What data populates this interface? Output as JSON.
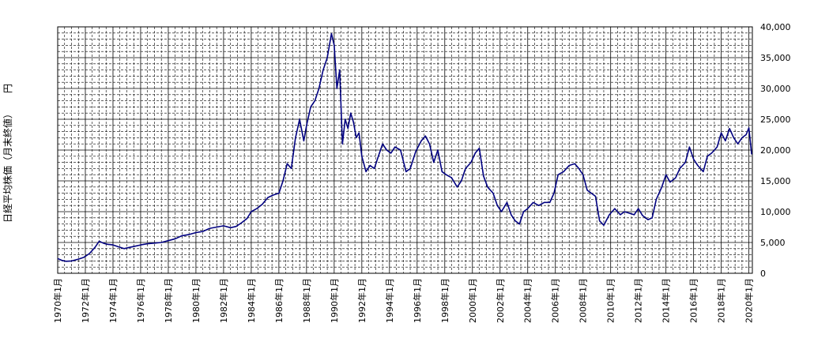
{
  "chart_data": {
    "type": "line",
    "ylabel": "日経平均株価（月末終値）",
    "unit_label": "円",
    "ylim": [
      0,
      40000
    ],
    "y_ticks": [
      {
        "value": 0,
        "label": "0"
      },
      {
        "value": 5000,
        "label": "5,000"
      },
      {
        "value": 10000,
        "label": "10,000"
      },
      {
        "value": 15000,
        "label": "15,000"
      },
      {
        "value": 20000,
        "label": "20,000"
      },
      {
        "value": 25000,
        "label": "25,000"
      },
      {
        "value": 30000,
        "label": "30,000"
      },
      {
        "value": 35000,
        "label": "35,000"
      },
      {
        "value": 40000,
        "label": "40,000"
      }
    ],
    "x_ticks": [
      {
        "value": 1970,
        "label": "1970年1月"
      },
      {
        "value": 1972,
        "label": "1972年1月"
      },
      {
        "value": 1974,
        "label": "1974年1月"
      },
      {
        "value": 1976,
        "label": "1976年1月"
      },
      {
        "value": 1978,
        "label": "1978年1月"
      },
      {
        "value": 1980,
        "label": "1980年1月"
      },
      {
        "value": 1982,
        "label": "1982年1月"
      },
      {
        "value": 1984,
        "label": "1984年1月"
      },
      {
        "value": 1986,
        "label": "1986年1月"
      },
      {
        "value": 1988,
        "label": "1988年1月"
      },
      {
        "value": 1990,
        "label": "1990年1月"
      },
      {
        "value": 1992,
        "label": "1992年1月"
      },
      {
        "value": 1994,
        "label": "1994年1月"
      },
      {
        "value": 1996,
        "label": "1996年1月"
      },
      {
        "value": 1998,
        "label": "1998年1月"
      },
      {
        "value": 2000,
        "label": "2000年1月"
      },
      {
        "value": 2002,
        "label": "2002年1月"
      },
      {
        "value": 2004,
        "label": "2004年1月"
      },
      {
        "value": 2006,
        "label": "2006年1月"
      },
      {
        "value": 2008,
        "label": "2008年1月"
      },
      {
        "value": 2010,
        "label": "2010年1月"
      },
      {
        "value": 2012,
        "label": "2012年1月"
      },
      {
        "value": 2014,
        "label": "2014年1月"
      },
      {
        "value": 2016,
        "label": "2016年1月"
      },
      {
        "value": 2018,
        "label": "2018年1月"
      },
      {
        "value": 2020,
        "label": "2020年1月"
      }
    ],
    "xlim": [
      1970,
      2020.25
    ],
    "grid": true,
    "line_color": "#000080",
    "x": [
      1970.0,
      1970.3,
      1970.6,
      1971.0,
      1971.5,
      1971.9,
      1972.3,
      1972.7,
      1973.0,
      1973.3,
      1973.6,
      1974.0,
      1974.4,
      1974.8,
      1975.2,
      1975.6,
      1976.0,
      1976.5,
      1977.0,
      1977.5,
      1978.0,
      1978.5,
      1979.0,
      1979.5,
      1980.0,
      1980.5,
      1981.0,
      1981.5,
      1982.0,
      1982.5,
      1982.9,
      1983.3,
      1983.7,
      1984.0,
      1984.4,
      1984.8,
      1985.2,
      1985.6,
      1986.0,
      1986.3,
      1986.6,
      1986.9,
      1987.2,
      1987.5,
      1987.8,
      1988.0,
      1988.3,
      1988.6,
      1988.9,
      1989.2,
      1989.5,
      1989.8,
      1990.0,
      1990.2,
      1990.4,
      1990.6,
      1990.8,
      1991.0,
      1991.2,
      1991.4,
      1991.6,
      1991.8,
      1992.0,
      1992.3,
      1992.6,
      1992.9,
      1993.2,
      1993.5,
      1993.8,
      1994.1,
      1994.4,
      1994.8,
      1995.2,
      1995.5,
      1995.9,
      1996.3,
      1996.6,
      1996.9,
      1997.2,
      1997.5,
      1997.8,
      1998.1,
      1998.5,
      1998.9,
      1999.2,
      1999.5,
      1999.9,
      2000.2,
      2000.5,
      2000.8,
      2001.1,
      2001.5,
      2001.8,
      2002.1,
      2002.5,
      2002.8,
      2003.1,
      2003.4,
      2003.7,
      2004.0,
      2004.4,
      2004.8,
      2005.2,
      2005.6,
      2005.9,
      2006.2,
      2006.6,
      2007.0,
      2007.4,
      2007.7,
      2008.0,
      2008.3,
      2008.6,
      2008.9,
      2009.2,
      2009.5,
      2009.9,
      2010.3,
      2010.7,
      2011.0,
      2011.3,
      2011.7,
      2012.0,
      2012.3,
      2012.7,
      2013.0,
      2013.3,
      2013.7,
      2014.0,
      2014.3,
      2014.7,
      2015.0,
      2015.4,
      2015.7,
      2016.0,
      2016.3,
      2016.7,
      2017.0,
      2017.3,
      2017.7,
      2018.0,
      2018.3,
      2018.6,
      2018.9,
      2019.2,
      2019.5,
      2019.8,
      2020.0,
      2020.2
    ],
    "values": [
      2400,
      2100,
      1950,
      2000,
      2300,
      2600,
      3200,
      4200,
      5200,
      4900,
      4700,
      4600,
      4300,
      4000,
      4200,
      4400,
      4600,
      4800,
      4900,
      5000,
      5300,
      5600,
      6100,
      6300,
      6600,
      6800,
      7300,
      7500,
      7700,
      7400,
      7600,
      8200,
      8900,
      10000,
      10500,
      11200,
      12300,
      12700,
      13000,
      15000,
      17800,
      17000,
      22000,
      25000,
      21500,
      24000,
      27000,
      28000,
      30000,
      33000,
      35000,
      38900,
      37000,
      30000,
      33000,
      21000,
      25000,
      23500,
      26000,
      24500,
      22000,
      22800,
      19000,
      16500,
      17500,
      17000,
      19000,
      21000,
      20000,
      19500,
      20500,
      20000,
      16500,
      17000,
      19800,
      21500,
      22300,
      21000,
      18000,
      20000,
      16500,
      16000,
      15500,
      14000,
      15000,
      17000,
      18000,
      19500,
      20300,
      15800,
      14000,
      13000,
      11000,
      10000,
      11500,
      9500,
      8500,
      8000,
      10000,
      10500,
      11500,
      11000,
      11500,
      11500,
      13000,
      16000,
      16500,
      17500,
      17800,
      17000,
      16000,
      13500,
      13000,
      12500,
      8500,
      7800,
      9500,
      10500,
      9500,
      10000,
      9800,
      9500,
      10500,
      9400,
      8700,
      9000,
      12000,
      14000,
      16000,
      14800,
      15500,
      17000,
      18000,
      20500,
      18500,
      17500,
      16500,
      19000,
      19500,
      20500,
      22800,
      21500,
      23500,
      22000,
      21000,
      22000,
      22500,
      23600,
      19300
    ]
  }
}
